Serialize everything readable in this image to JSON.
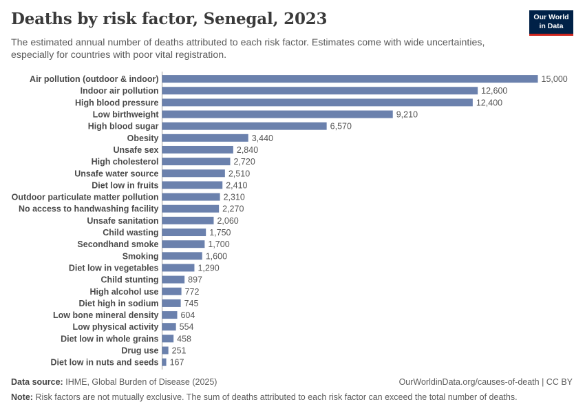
{
  "header": {
    "title": "Deaths by risk factor, Senegal, 2023",
    "subtitle": "The estimated annual number of deaths attributed to each risk factor. Estimates come with wide uncertainties, especially for countries with poor vital registration."
  },
  "logo": {
    "line1": "Our World",
    "line2": "in Data"
  },
  "footer": {
    "source_label": "Data source:",
    "source_text": "IHME, Global Burden of Disease (2025)",
    "link": "OurWorldinData.org/causes-of-death | CC BY",
    "note_label": "Note:",
    "note_text": "Risk factors are not mutually exclusive. The sum of deaths attributed to each risk factor can exceed the total number of deaths."
  },
  "colors": {
    "bar": "#6b81ad",
    "brand": "#002147",
    "brand_accent": "#ce261e"
  },
  "chart_data": {
    "type": "bar",
    "orientation": "horizontal",
    "title": "Deaths by risk factor, Senegal, 2023",
    "xlabel": "",
    "ylabel": "",
    "xlim": [
      0,
      15000
    ],
    "categories": [
      "Air pollution (outdoor & indoor)",
      "Indoor air pollution",
      "High blood pressure",
      "Low birthweight",
      "High blood sugar",
      "Obesity",
      "Unsafe sex",
      "High cholesterol",
      "Unsafe water source",
      "Diet low in fruits",
      "Outdoor particulate matter pollution",
      "No access to handwashing facility",
      "Unsafe sanitation",
      "Child wasting",
      "Secondhand smoke",
      "Smoking",
      "Diet low in vegetables",
      "Child stunting",
      "High alcohol use",
      "Diet high in sodium",
      "Low bone mineral density",
      "Low physical activity",
      "Diet low in whole grains",
      "Drug use",
      "Diet low in nuts and seeds"
    ],
    "values": [
      15000,
      12600,
      12400,
      9210,
      6570,
      3440,
      2840,
      2720,
      2510,
      2410,
      2310,
      2270,
      2060,
      1750,
      1700,
      1600,
      1290,
      897,
      772,
      745,
      604,
      554,
      458,
      251,
      167
    ],
    "labels": [
      "15,000",
      "12,600",
      "12,400",
      "9,210",
      "6,570",
      "3,440",
      "2,840",
      "2,720",
      "2,510",
      "2,410",
      "2,310",
      "2,270",
      "2,060",
      "1,750",
      "1,700",
      "1,600",
      "1,290",
      "897",
      "772",
      "745",
      "604",
      "554",
      "458",
      "251",
      "167"
    ]
  }
}
